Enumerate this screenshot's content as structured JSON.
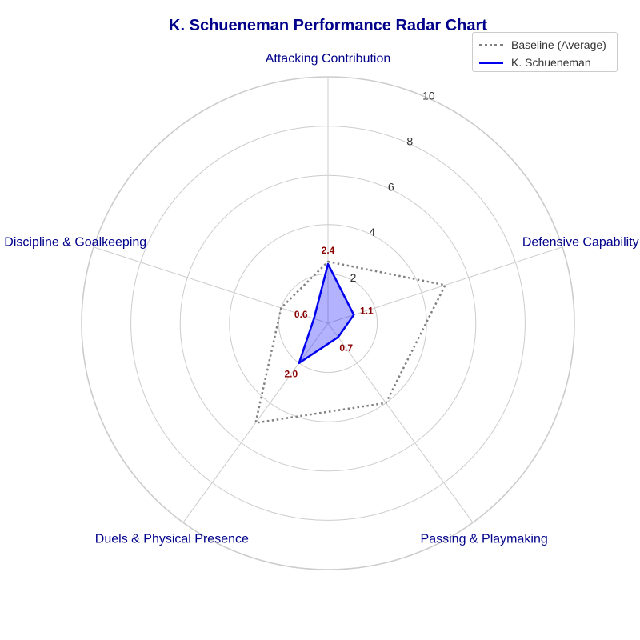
{
  "chart_data": {
    "type": "radar",
    "title": "K. Schueneman Performance Radar Chart",
    "categories": [
      "Attacking Contribution",
      "Defensive Capability",
      "Passing & Playmaking",
      "Duels & Physical Presence",
      "Discipline & Goalkeeping"
    ],
    "rlim": [
      0,
      10
    ],
    "rticks": [
      "2",
      "4",
      "6",
      "8",
      "10"
    ],
    "grid": true,
    "legend_position": "top-right",
    "series": [
      {
        "name": "Baseline (Average)",
        "values": [
          2.5,
          5.0,
          4.0,
          5.0,
          2.0
        ],
        "color": "#808080",
        "style": "dotted"
      },
      {
        "name": "K. Schueneman",
        "values": [
          2.4,
          1.1,
          0.7,
          2.0,
          0.6
        ],
        "color": "#0000ee",
        "fill": "#0000ff",
        "style": "solid",
        "data_labels": [
          "2.4",
          "1.1",
          "0.7",
          "2.0",
          "0.6"
        ]
      }
    ],
    "colors": {
      "title": "#00008b",
      "axis_label": "#00008b",
      "data_label": "#8b0000",
      "grid": "#cccccc"
    }
  }
}
